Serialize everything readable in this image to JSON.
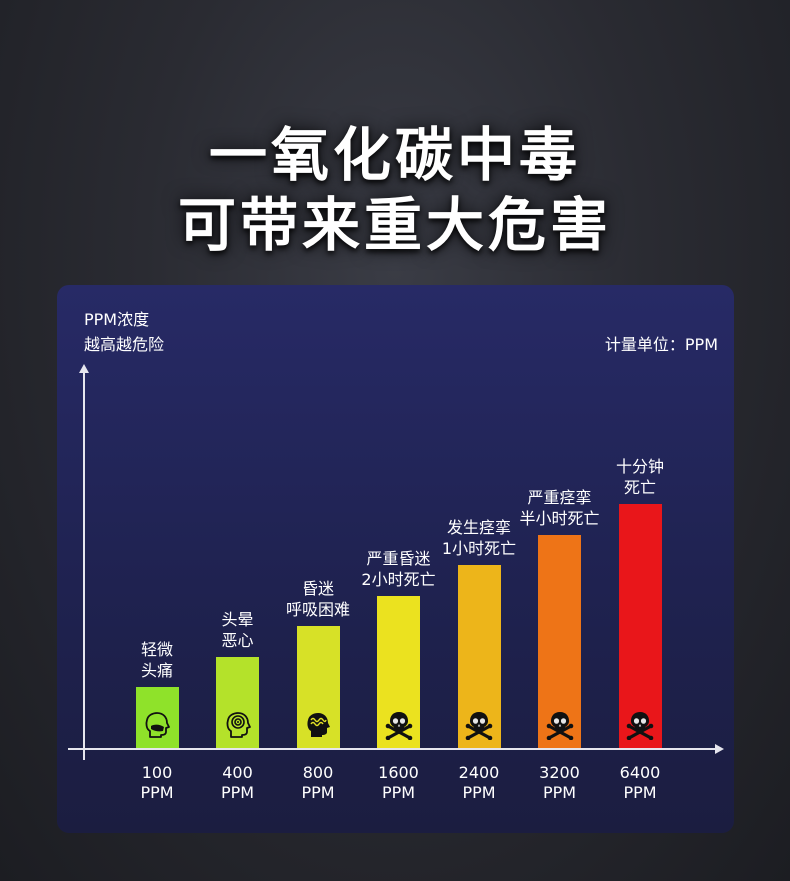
{
  "headline": {
    "line1": "一氧化碳中毒",
    "line2": "可带来重大危害"
  },
  "chart_data": {
    "type": "bar",
    "ylabel_line1": "PPM浓度",
    "ylabel_line2": "越高越危险",
    "unit_note": "计量单位：PPM",
    "categories": [
      "100\nPPM",
      "400\nPPM",
      "800\nPPM",
      "1600\nPPM",
      "2400\nPPM",
      "3200\nPPM",
      "6400\nPPM"
    ],
    "tick_values": [
      "100",
      "400",
      "800",
      "1600",
      "2400",
      "3200",
      "6400"
    ],
    "tick_unit": "PPM",
    "bar_levels": [
      1,
      1.5,
      2,
      2.5,
      3,
      3.5,
      4
    ],
    "bar_colors": [
      "#8fe22a",
      "#b4e22a",
      "#d7e127",
      "#ebe21f",
      "#edb51a",
      "#ee7417",
      "#e9161a"
    ],
    "annotations": [
      [
        "轻微",
        "头痛"
      ],
      [
        "头晕",
        "恶心"
      ],
      [
        "昏迷",
        "呼吸困难"
      ],
      [
        "严重昏迷",
        "2小时死亡"
      ],
      [
        "发生痉挛",
        "1小时死亡"
      ],
      [
        "严重痉挛",
        "半小时死亡"
      ],
      [
        "十分钟",
        "死亡"
      ]
    ],
    "icons": [
      "masked-head-icon",
      "dizzy-head-icon",
      "confused-head-icon",
      "skull-crossbones-icon",
      "skull-crossbones-icon",
      "skull-crossbones-icon",
      "skull-crossbones-icon"
    ]
  }
}
